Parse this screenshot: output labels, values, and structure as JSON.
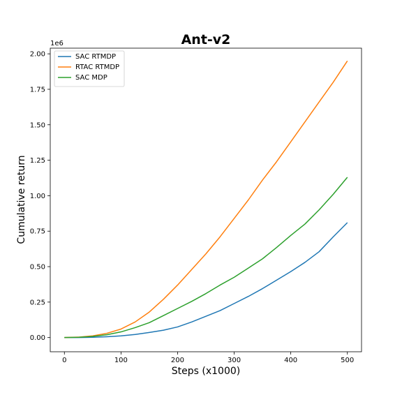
{
  "chart_data": {
    "type": "line",
    "title": "Ant-v2",
    "xlabel": "Steps (x1000)",
    "ylabel": "Cumulative return",
    "y_offset_label": "1e6",
    "xlim": [
      -25,
      525
    ],
    "ylim": [
      -0.1,
      2.04
    ],
    "x_ticks": [
      0,
      100,
      200,
      300,
      400,
      500
    ],
    "y_ticks": [
      0.0,
      0.25,
      0.5,
      0.75,
      1.0,
      1.25,
      1.5,
      1.75,
      2.0
    ],
    "x_tick_labels": [
      "0",
      "100",
      "200",
      "300",
      "400",
      "500"
    ],
    "y_tick_labels": [
      "0.00",
      "0.25",
      "0.50",
      "0.75",
      "1.00",
      "1.25",
      "1.50",
      "1.75",
      "2.00"
    ],
    "grid": false,
    "legend_position": "top-left",
    "x": [
      0,
      25,
      50,
      75,
      100,
      125,
      150,
      175,
      200,
      225,
      250,
      275,
      300,
      325,
      350,
      375,
      400,
      425,
      450,
      475,
      500
    ],
    "series": [
      {
        "name": "SAC RTMDP",
        "color": "#1f77b4",
        "values": [
          0.0,
          0.0,
          0.002,
          0.006,
          0.012,
          0.022,
          0.036,
          0.052,
          0.075,
          0.11,
          0.15,
          0.19,
          0.24,
          0.29,
          0.345,
          0.405,
          0.465,
          0.53,
          0.605,
          0.71,
          0.81
        ]
      },
      {
        "name": "RTAC RTMDP",
        "color": "#ff7f0e",
        "values": [
          0.0,
          0.003,
          0.012,
          0.03,
          0.06,
          0.11,
          0.18,
          0.27,
          0.37,
          0.48,
          0.59,
          0.71,
          0.84,
          0.97,
          1.11,
          1.24,
          1.38,
          1.52,
          1.66,
          1.8,
          1.95
        ]
      },
      {
        "name": "SAC MDP",
        "color": "#2ca02c",
        "values": [
          0.0,
          0.002,
          0.008,
          0.02,
          0.04,
          0.07,
          0.105,
          0.155,
          0.205,
          0.255,
          0.31,
          0.37,
          0.425,
          0.49,
          0.555,
          0.635,
          0.72,
          0.8,
          0.9,
          1.01,
          1.13
        ]
      }
    ]
  }
}
